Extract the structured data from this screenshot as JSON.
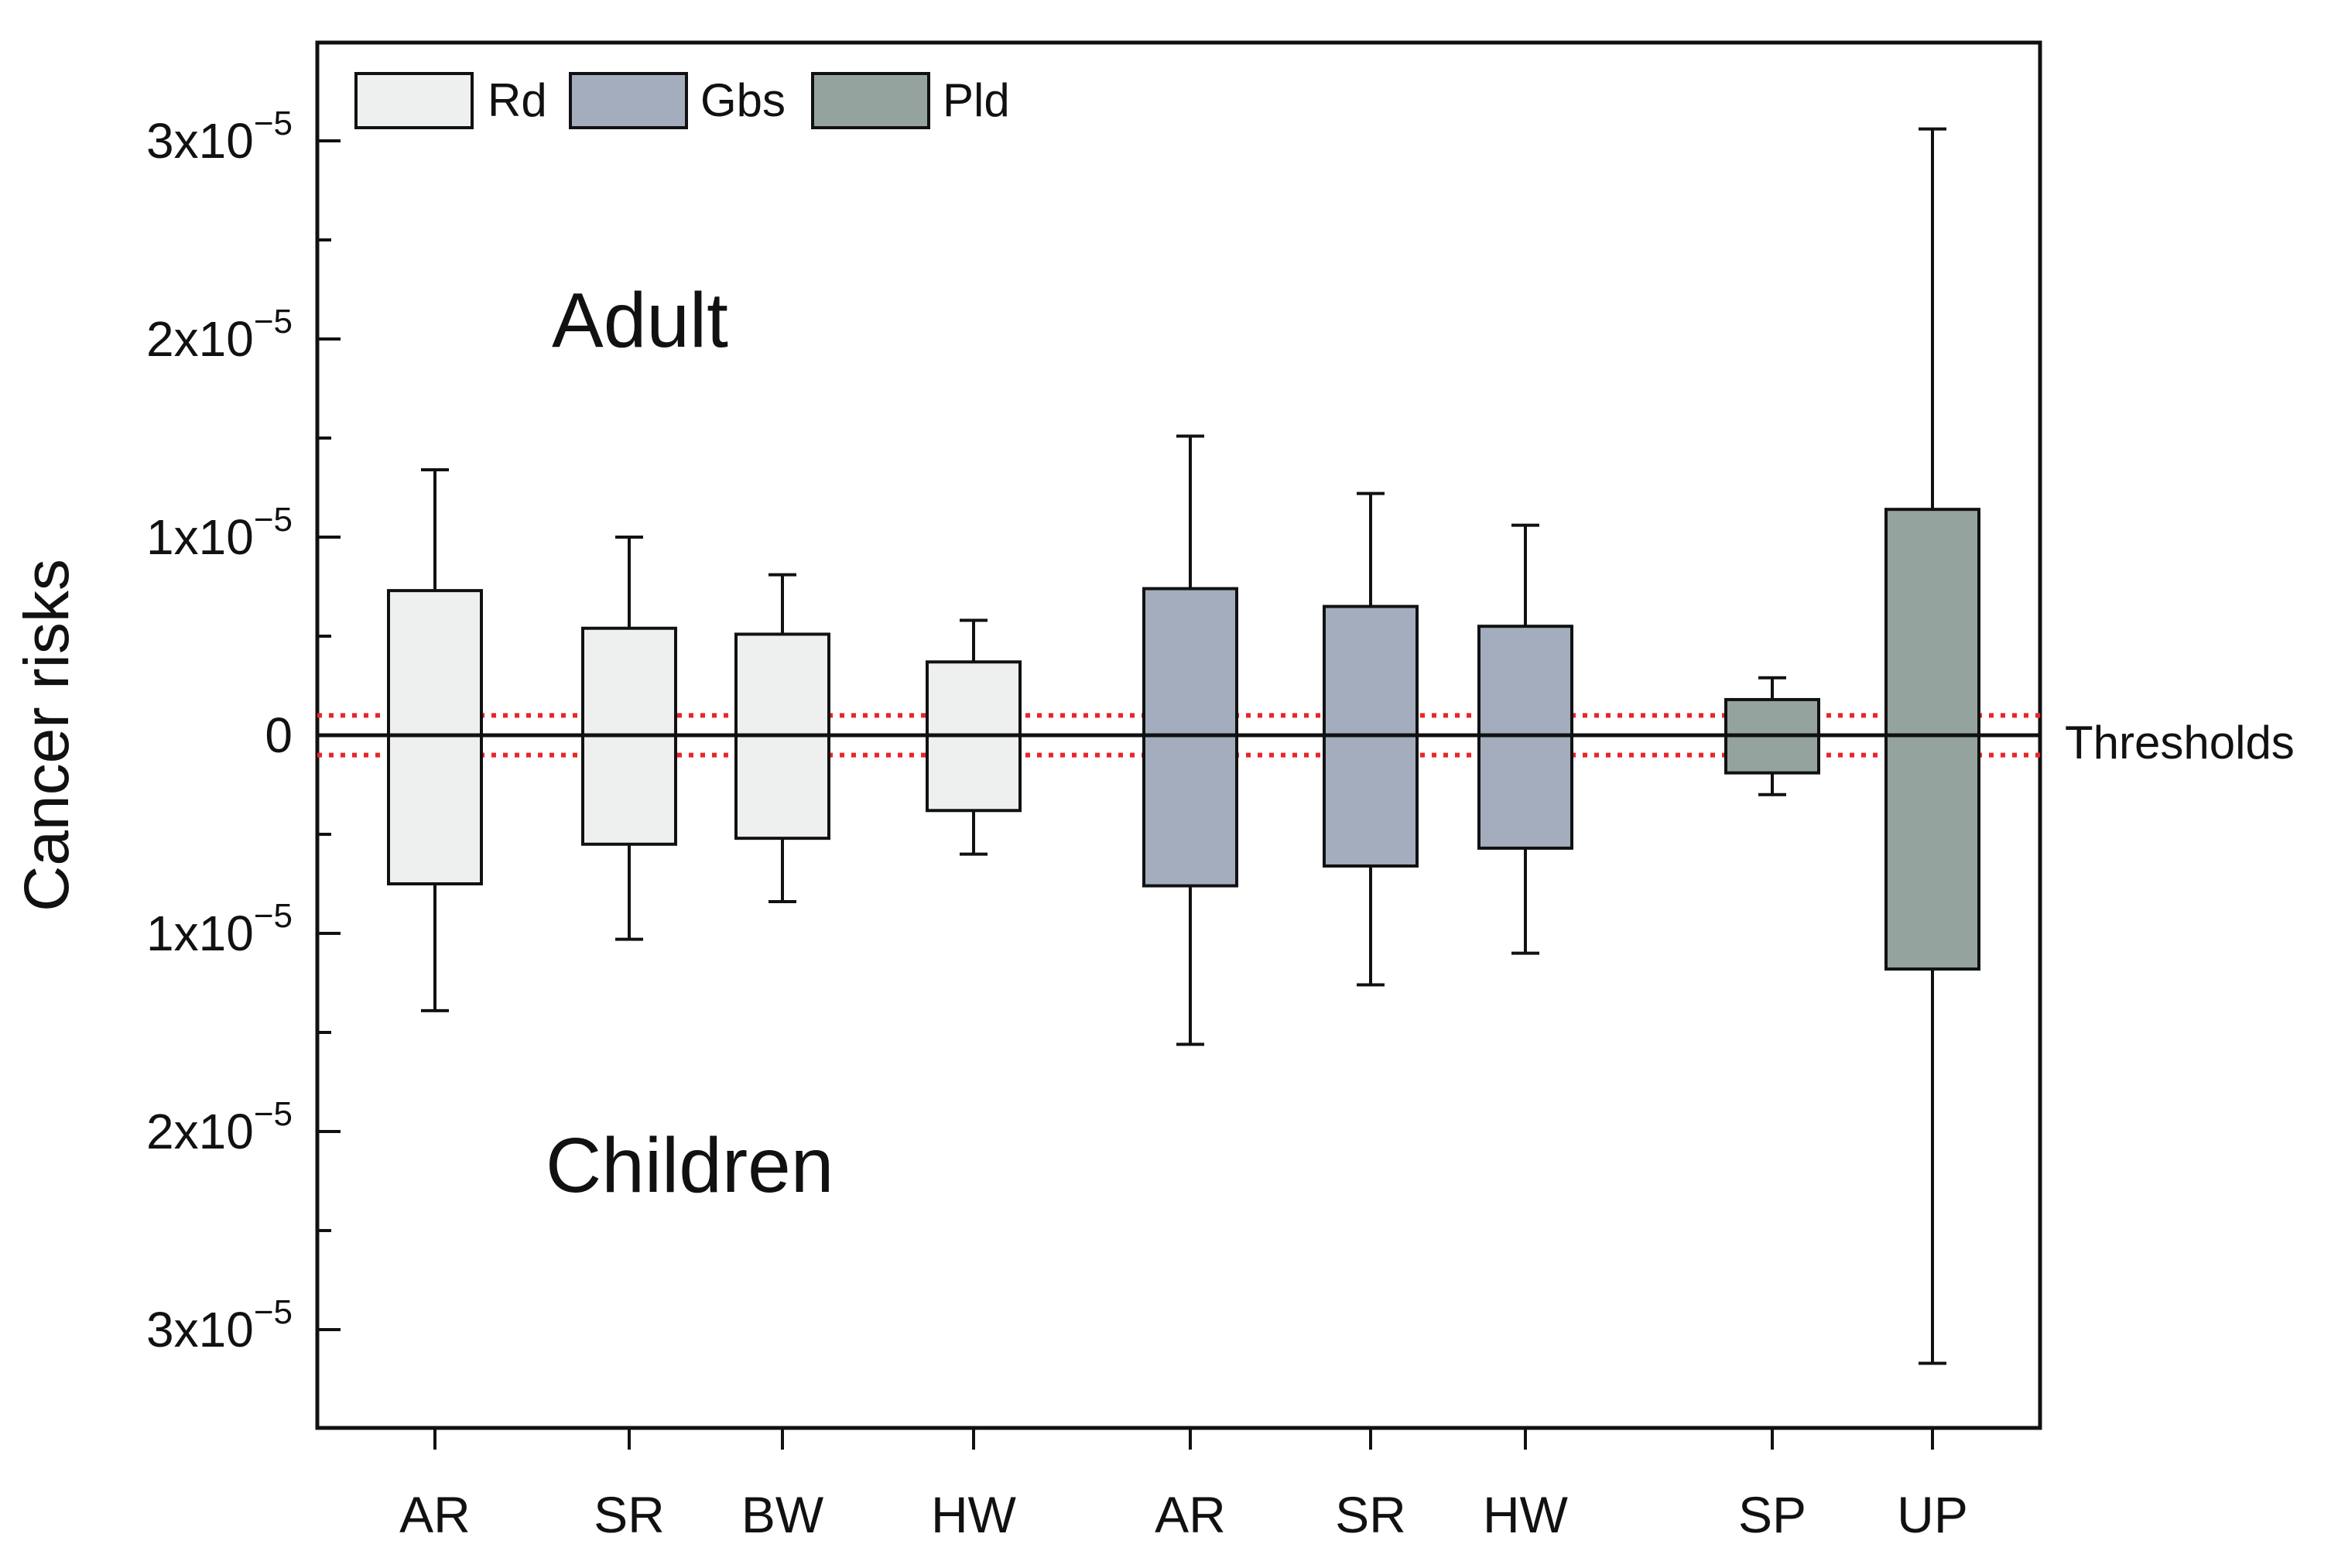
{
  "chart_data": {
    "type": "boxplot",
    "ylabel": "Cancer risks",
    "y_ticks": [
      {
        "value": 3e-05,
        "base": "3x10",
        "exp": "−5"
      },
      {
        "value": 2e-05,
        "base": "2x10",
        "exp": "−5"
      },
      {
        "value": 1e-05,
        "base": "1x10",
        "exp": "−5"
      },
      {
        "value": 0,
        "base": "0",
        "exp": ""
      },
      {
        "value": -1e-05,
        "base": "1x10",
        "exp": "−5"
      },
      {
        "value": -2e-05,
        "base": "2x10",
        "exp": "−5"
      },
      {
        "value": -3e-05,
        "base": "3x10",
        "exp": "−5"
      }
    ],
    "ylim": [
      -3.5e-05,
      3.5e-05
    ],
    "upper_group_label": "Adult",
    "lower_group_label": "Children",
    "threshold_label": "Thresholds",
    "thresholds": [
      1e-06,
      -1e-06
    ],
    "threshold_color": "#e8262a",
    "legend_position": "top-left",
    "legend": [
      {
        "label": "Rd",
        "color": "#eef0f0"
      },
      {
        "label": "Gbs",
        "color": "#a3adbd"
      },
      {
        "label": "Pld",
        "color": "#95a39f"
      }
    ],
    "boxes": [
      {
        "category": "AR",
        "series": "Rd",
        "adult_box": 7.3e-06,
        "adult_whisker": 1.34e-05,
        "children_box": -7.5e-06,
        "children_whisker": -1.39e-05
      },
      {
        "category": "SR",
        "series": "Rd",
        "adult_box": 5.4e-06,
        "adult_whisker": 1e-05,
        "children_box": -5.5e-06,
        "children_whisker": -1.03e-05
      },
      {
        "category": "BW",
        "series": "Rd",
        "adult_box": 5.1e-06,
        "adult_whisker": 8.1e-06,
        "children_box": -5.2e-06,
        "children_whisker": -8.4e-06
      },
      {
        "category": "HW",
        "series": "Rd",
        "adult_box": 3.7e-06,
        "adult_whisker": 5.8e-06,
        "children_box": -3.8e-06,
        "children_whisker": -6e-06
      },
      {
        "category": "AR",
        "series": "Gbs",
        "adult_box": 7.4e-06,
        "adult_whisker": 1.51e-05,
        "children_box": -7.6e-06,
        "children_whisker": -1.56e-05
      },
      {
        "category": "SR",
        "series": "Gbs",
        "adult_box": 6.5e-06,
        "adult_whisker": 1.22e-05,
        "children_box": -6.6e-06,
        "children_whisker": -1.26e-05
      },
      {
        "category": "HW",
        "series": "Gbs",
        "adult_box": 5.5e-06,
        "adult_whisker": 1.06e-05,
        "children_box": -5.7e-06,
        "children_whisker": -1.1e-05
      },
      {
        "category": "SP",
        "series": "Pld",
        "adult_box": 1.8e-06,
        "adult_whisker": 2.9e-06,
        "children_box": -1.9e-06,
        "children_whisker": -3e-06
      },
      {
        "category": "UP",
        "series": "Pld",
        "adult_box": 1.14e-05,
        "adult_whisker": 3.06e-05,
        "children_box": -1.18e-05,
        "children_whisker": -3.17e-05
      }
    ]
  }
}
